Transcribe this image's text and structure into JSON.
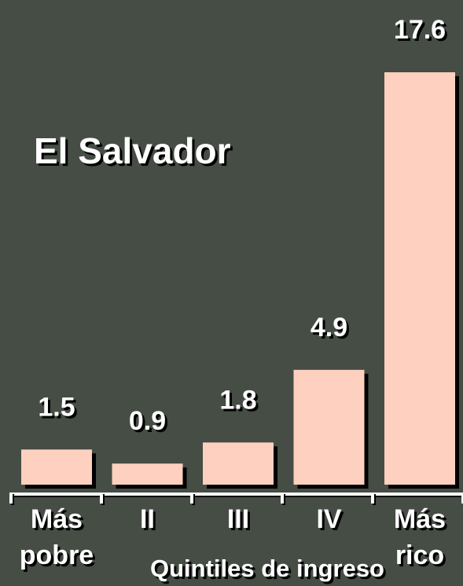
{
  "chart_data": {
    "type": "bar",
    "title": "El Salvador",
    "categories": [
      "Más pobre",
      "II",
      "III",
      "IV",
      "Más rico"
    ],
    "values": [
      1.5,
      0.9,
      1.8,
      4.9,
      17.6
    ],
    "x_label": "Quintiles de ingreso",
    "color": "#fdd0bf"
  }
}
